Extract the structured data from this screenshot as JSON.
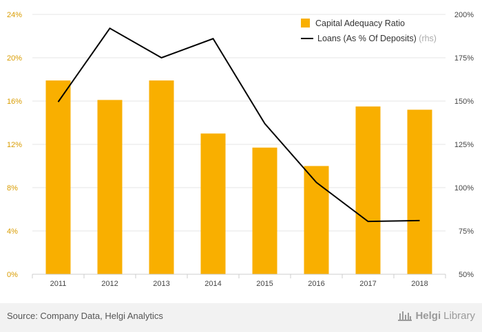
{
  "chart_data": {
    "type": "bar",
    "categories": [
      "2011",
      "2012",
      "2013",
      "2014",
      "2015",
      "2016",
      "2017",
      "2018"
    ],
    "series": [
      {
        "name": "Capital Adequacy Ratio",
        "type": "bar",
        "axis": "left",
        "color": "#f9af00",
        "values": [
          17.9,
          16.1,
          17.9,
          13.0,
          11.7,
          10.0,
          15.5,
          15.2
        ]
      },
      {
        "name": "Loans (As % Of Deposits)",
        "name_suffix": "(rhs)",
        "type": "line",
        "axis": "right",
        "color": "#000000",
        "values": [
          149.5,
          192,
          175,
          186,
          137,
          103,
          80.5,
          81
        ]
      }
    ],
    "y_left": {
      "ylim": [
        0,
        24
      ],
      "ticks": [
        0,
        4,
        8,
        12,
        16,
        20,
        24
      ],
      "tick_labels": [
        "0%",
        "4%",
        "8%",
        "12%",
        "16%",
        "20%",
        "24%"
      ]
    },
    "y_right": {
      "ylim": [
        50,
        200
      ],
      "ticks": [
        50,
        75,
        100,
        125,
        150,
        175,
        200
      ],
      "tick_labels": [
        "50%",
        "75%",
        "100%",
        "125%",
        "150%",
        "175%",
        "200%"
      ]
    },
    "grid": true,
    "legend_position": "top-right",
    "title": "",
    "xlabel": "",
    "ylabel": ""
  },
  "footer": {
    "source": "Source: Company Data, Helgi Analytics",
    "logo_bold": "Helgi",
    "logo_light": "Library"
  }
}
